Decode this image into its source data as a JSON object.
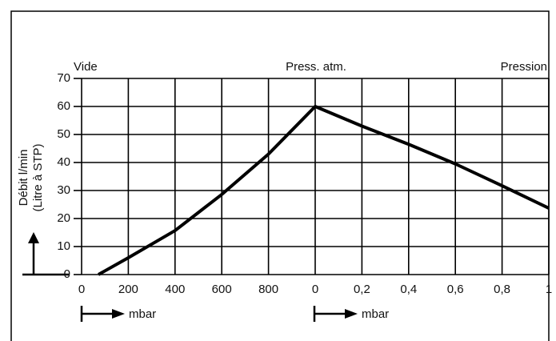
{
  "chart_data": {
    "type": "line",
    "annotations": {
      "left": "Vide",
      "middle": "Press. atm.",
      "right": "Pression",
      "ylabel": "Débit l/min",
      "ylabel2": "(Litre à STP)",
      "unit_left": "mbar",
      "unit_right": "mbar"
    },
    "x": [
      72,
      200,
      400,
      600,
      800,
      1000,
      1200,
      1400,
      1600,
      1800,
      2000
    ],
    "values": [
      0,
      6,
      15.7,
      28.6,
      43,
      60,
      53,
      46.5,
      39.5,
      31.7,
      23.7
    ],
    "color": "#000000",
    "xlim": [
      0,
      2000
    ],
    "ylim": [
      0,
      70
    ],
    "xticks": [
      0,
      200,
      400,
      600,
      800,
      {
        "value": 1000,
        "label": "0"
      },
      {
        "value": 1200,
        "label": "0,2"
      },
      {
        "value": 1400,
        "label": "0,4"
      },
      {
        "value": 1600,
        "label": "0,6"
      },
      {
        "value": 1800,
        "label": "0,8"
      },
      {
        "value": 2000,
        "label": "1"
      }
    ],
    "yticks": [
      0,
      10,
      20,
      30,
      40,
      50,
      60,
      70
    ],
    "grid": true
  }
}
